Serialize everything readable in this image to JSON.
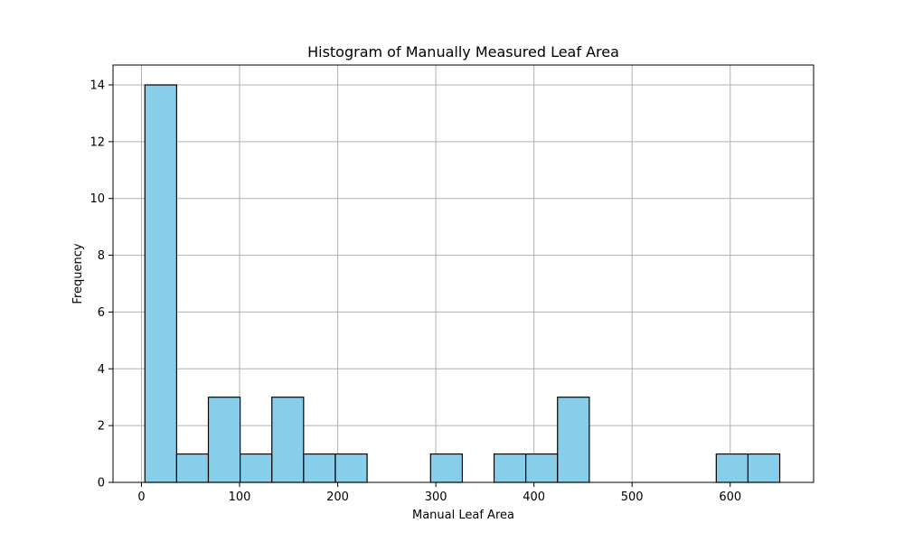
{
  "chart_data": {
    "type": "bar",
    "title": "Histogram of Manually Measured Leaf Area",
    "xlabel": "Manual Leaf Area",
    "ylabel": "Frequency",
    "bin_edges": [
      3.5,
      35.85,
      68.2,
      100.55,
      132.9,
      165.25,
      197.6,
      229.95,
      262.3,
      294.65,
      327.0,
      359.35,
      391.7,
      424.05,
      456.4,
      488.75,
      521.1,
      553.45,
      585.8,
      618.15,
      650.5
    ],
    "values": [
      14,
      1,
      3,
      1,
      3,
      1,
      1,
      0,
      0,
      1,
      0,
      1,
      1,
      3,
      0,
      0,
      0,
      0,
      1,
      1
    ],
    "xlim": [
      -29,
      685
    ],
    "ylim": [
      0,
      14.7
    ],
    "xticks": [
      0,
      100,
      200,
      300,
      400,
      500,
      600
    ],
    "yticks": [
      0,
      2,
      4,
      6,
      8,
      10,
      12,
      14
    ],
    "grid": true,
    "bar_color": "#87ceeb",
    "edge_color": "#000000",
    "grid_color": "#b0b0b0"
  }
}
